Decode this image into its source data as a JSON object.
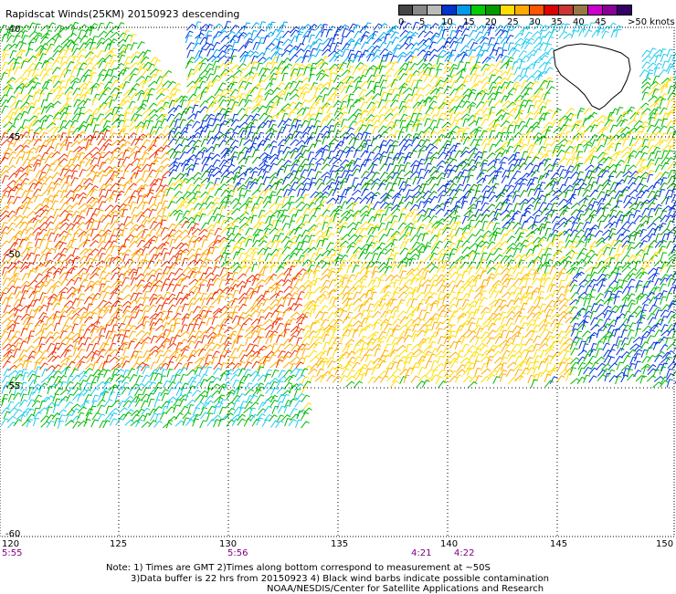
{
  "title": "Rapidscat Winds(25KM) 20150923 descending",
  "legend": {
    "colors": [
      "#444444",
      "#888888",
      "#bbbbbb",
      "#0033cc",
      "#0099ee",
      "#00cc00",
      "#009900",
      "#ffdd00",
      "#ffaa00",
      "#ff5500",
      "#dd0000",
      "#cc3333",
      "#997744",
      "#cc00cc",
      "#880099",
      "#330066"
    ],
    "labels": [
      "0",
      "5",
      "10",
      "15",
      "20",
      "25",
      "30",
      "35",
      "40",
      "45",
      ">50 knots"
    ]
  },
  "axes": {
    "lat_labels": [
      "-40",
      "-45",
      "-50",
      "-55",
      "-60"
    ],
    "lon_labels": [
      "120",
      "125",
      "130",
      "135",
      "140",
      "145",
      "150"
    ]
  },
  "time_labels": [
    "5:55",
    "5:56",
    "4:21",
    "4:22"
  ],
  "notes": [
    "Note: 1) Times are GMT 2)Times along bottom correspond to measurement at ~50S",
    "3)Data buffer is 22 hrs from 20150923 4) Black wind barbs indicate possible contamination",
    "NOAA/NESDIS/Center for Satellite Applications and Research"
  ]
}
